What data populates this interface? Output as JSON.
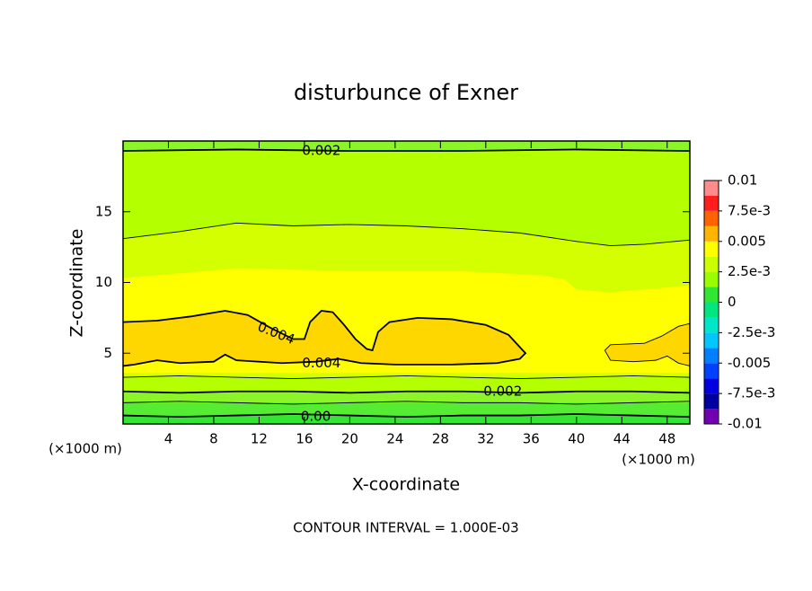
{
  "chart_data": {
    "type": "contour",
    "title": "disturbunce of Exner",
    "xlabel": "X-coordinate",
    "ylabel": "Z-coordinate",
    "xunit": "(×1000 m)",
    "yunit": "(×1000 m)",
    "note": "CONTOUR INTERVAL = 1.000E-03",
    "xlim": [
      0,
      50
    ],
    "ylim": [
      0,
      20
    ],
    "xticks": [
      4,
      8,
      12,
      16,
      20,
      24,
      28,
      32,
      36,
      40,
      44,
      48
    ],
    "yticks": [
      5,
      10,
      15
    ],
    "bands": [
      {
        "color": "#b4ff00",
        "x": [
          0,
          50,
          50,
          0
        ],
        "y": [
          0,
          0,
          20,
          20
        ]
      },
      {
        "color": "#8cf52a",
        "x": [
          0,
          10,
          20,
          30,
          40,
          50,
          50,
          0
        ],
        "y": [
          19.3,
          19.4,
          19.3,
          19.3,
          19.4,
          19.3,
          20,
          20
        ]
      },
      {
        "color": "#d4ff00",
        "x": [
          0,
          5,
          10,
          15,
          20,
          25,
          30,
          35,
          40,
          43,
          46,
          50,
          50,
          0
        ],
        "y": [
          13.1,
          13.6,
          14.2,
          14.0,
          14.1,
          14.0,
          13.8,
          13.5,
          12.9,
          12.6,
          12.7,
          13.0,
          3.3,
          3.3
        ]
      },
      {
        "color": "#ffff00",
        "x": [
          0,
          10,
          20,
          30,
          37,
          39,
          40,
          43,
          50,
          50,
          0
        ],
        "y": [
          10.3,
          11.0,
          10.8,
          10.8,
          10.5,
          10.2,
          9.5,
          9.3,
          9.8,
          3.6,
          3.6
        ]
      },
      {
        "color": "#8cf52a",
        "x": [
          0,
          50,
          50,
          0
        ],
        "y": [
          2.3,
          2.3,
          1.5,
          1.5
        ]
      },
      {
        "color": "#55ec33",
        "x": [
          0,
          50,
          50,
          0
        ],
        "y": [
          1.5,
          1.5,
          0.6,
          0.6
        ]
      },
      {
        "color": "#33e633",
        "x": [
          0,
          50,
          50,
          0
        ],
        "y": [
          0.6,
          0.6,
          0,
          0
        ]
      }
    ],
    "contours": [
      {
        "level": 0.002,
        "label": "0.002",
        "x": [
          0,
          10,
          20,
          30,
          40,
          50
        ],
        "y": [
          19.3,
          19.4,
          19.3,
          19.3,
          19.4,
          19.3
        ]
      },
      {
        "level": 0.003,
        "x": [
          0,
          5,
          10,
          15,
          20,
          25,
          30,
          35,
          40,
          43,
          46,
          50
        ],
        "y": [
          13.1,
          13.6,
          14.2,
          14.0,
          14.1,
          14.0,
          13.8,
          13.5,
          12.9,
          12.6,
          12.7,
          13.0
        ]
      },
      {
        "level": 0.004,
        "label": "0.004",
        "fill": "#ffd700",
        "x": [
          0,
          3,
          6,
          9,
          11,
          13,
          15,
          16,
          16.5,
          17.5,
          18.5,
          19.5,
          20.5,
          21.5,
          22,
          22.5,
          23.5,
          26,
          29,
          32,
          34,
          35.5,
          35,
          33,
          29,
          24,
          21,
          19,
          17,
          14,
          10,
          9,
          8,
          5,
          3,
          1,
          0
        ],
        "y": [
          7.2,
          7.3,
          7.6,
          8.0,
          7.7,
          6.8,
          6.0,
          6.0,
          7.2,
          8.0,
          7.9,
          7.0,
          6.0,
          5.3,
          5.2,
          6.5,
          7.2,
          7.5,
          7.4,
          7.0,
          6.3,
          5.0,
          4.6,
          4.3,
          4.2,
          4.2,
          4.3,
          4.6,
          4.4,
          4.3,
          4.5,
          4.9,
          4.4,
          4.3,
          4.5,
          4.2,
          4.1
        ]
      },
      {
        "level": 0.004,
        "fill": "#ffd700",
        "x": [
          50,
          49,
          47.5,
          46,
          43,
          42.5,
          43,
          45,
          47,
          48,
          49,
          50
        ],
        "y": [
          7.1,
          6.9,
          6.2,
          5.7,
          5.6,
          5.2,
          4.5,
          4.4,
          4.5,
          4.8,
          4.3,
          4.1
        ]
      },
      {
        "level": 0.003,
        "x": [
          0,
          5,
          10,
          15,
          20,
          25,
          30,
          35,
          40,
          45,
          50
        ],
        "y": [
          3.3,
          3.4,
          3.3,
          3.2,
          3.3,
          3.4,
          3.3,
          3.2,
          3.3,
          3.4,
          3.3
        ]
      },
      {
        "level": 0.002,
        "label": "0.002",
        "x": [
          0,
          5,
          10,
          15,
          20,
          25,
          30,
          35,
          40,
          45,
          50
        ],
        "y": [
          2.3,
          2.2,
          2.3,
          2.3,
          2.2,
          2.3,
          2.3,
          2.2,
          2.3,
          2.3,
          2.2
        ]
      },
      {
        "level": 0.001,
        "x": [
          0,
          5,
          10,
          15,
          20,
          25,
          30,
          35,
          40,
          45,
          50
        ],
        "y": [
          1.5,
          1.6,
          1.5,
          1.4,
          1.5,
          1.6,
          1.5,
          1.5,
          1.4,
          1.5,
          1.6
        ]
      },
      {
        "level": 0,
        "label": "0.00",
        "x": [
          0,
          5,
          10,
          15,
          20,
          25,
          30,
          35,
          40,
          45,
          50
        ],
        "y": [
          0.6,
          0.5,
          0.6,
          0.7,
          0.6,
          0.5,
          0.6,
          0.6,
          0.7,
          0.6,
          0.5
        ]
      }
    ],
    "colorbar": {
      "levels": [
        -0.01,
        -0.00875,
        -0.0075,
        -0.00625,
        -0.005,
        -0.00375,
        -0.0025,
        -0.00125,
        0,
        0.00125,
        0.0025,
        0.00375,
        0.005,
        0.00625,
        0.0075,
        0.00875,
        0.01
      ],
      "colors": [
        "#7000b0",
        "#0000a0",
        "#0000e0",
        "#0040ff",
        "#0080ff",
        "#00c8ff",
        "#00e6c8",
        "#00e680",
        "#33e633",
        "#99ff00",
        "#ccff00",
        "#ffff00",
        "#ffb400",
        "#ff6400",
        "#ff1e1e",
        "#ff8c8c"
      ],
      "ticks": [
        0.01,
        {
          "value": 0.0075,
          "label": "7.5e-3"
        },
        0.005,
        {
          "value": 0.0025,
          "label": "2.5e-3"
        },
        0,
        {
          "value": -0.0025,
          "label": "-2.5e-3"
        },
        -0.005,
        {
          "value": -0.0075,
          "label": "-7.5e-3"
        },
        -0.01
      ]
    }
  }
}
